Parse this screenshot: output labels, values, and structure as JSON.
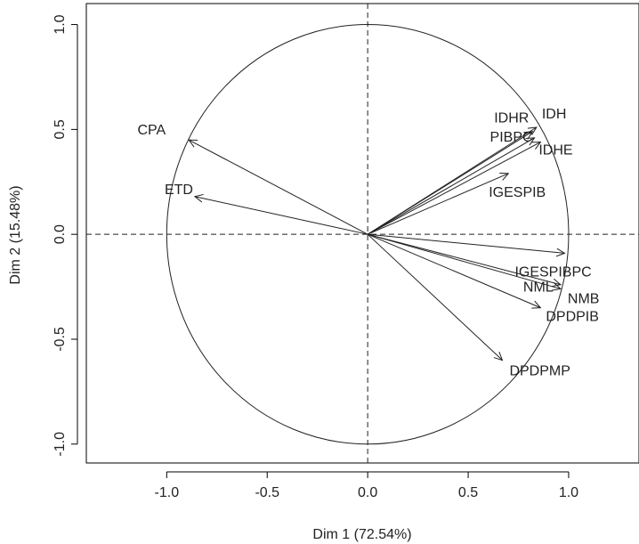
{
  "chart_data": {
    "type": "scatter",
    "xlabel": "Dim 1 (72.54%)",
    "ylabel": "Dim 2 (15.48%)",
    "xlim": [
      -1.4,
      1.35
    ],
    "ylim": [
      -1.09,
      1.1
    ],
    "xticks": [
      -1.0,
      -0.5,
      0.0,
      0.5,
      1.0
    ],
    "yticks": [
      -1.0,
      -0.5,
      0.0,
      0.5,
      1.0
    ],
    "xtick_labels": [
      "-1.0",
      "-0.5",
      "0.0",
      "0.5",
      "1.0"
    ],
    "ytick_labels": [
      "-1.0",
      "-0.5",
      "0.0",
      "0.5",
      "1.0"
    ],
    "grid": false,
    "unit_circle": true,
    "reference_lines": {
      "x": 0,
      "y": 0,
      "style": "dashed"
    },
    "vectors": [
      {
        "label": "CPA",
        "x": -0.89,
        "y": 0.45
      },
      {
        "label": "ETD",
        "x": -0.86,
        "y": 0.18
      },
      {
        "label": "IDHR",
        "x": 0.82,
        "y": 0.49
      },
      {
        "label": "IDH",
        "x": 0.84,
        "y": 0.51
      },
      {
        "label": "PIBPC",
        "x": 0.83,
        "y": 0.46
      },
      {
        "label": "IDHE",
        "x": 0.86,
        "y": 0.44
      },
      {
        "label": "IGESPIB",
        "x": 0.7,
        "y": 0.29
      },
      {
        "label": "IGESPIBPC",
        "x": 0.98,
        "y": -0.09
      },
      {
        "label": "NML",
        "x": 0.96,
        "y": -0.24
      },
      {
        "label": "NMB",
        "x": 0.96,
        "y": -0.26
      },
      {
        "label": "DPDPIB",
        "x": 0.86,
        "y": -0.35
      },
      {
        "label": "DPDPMP",
        "x": 0.67,
        "y": -0.6
      }
    ]
  }
}
